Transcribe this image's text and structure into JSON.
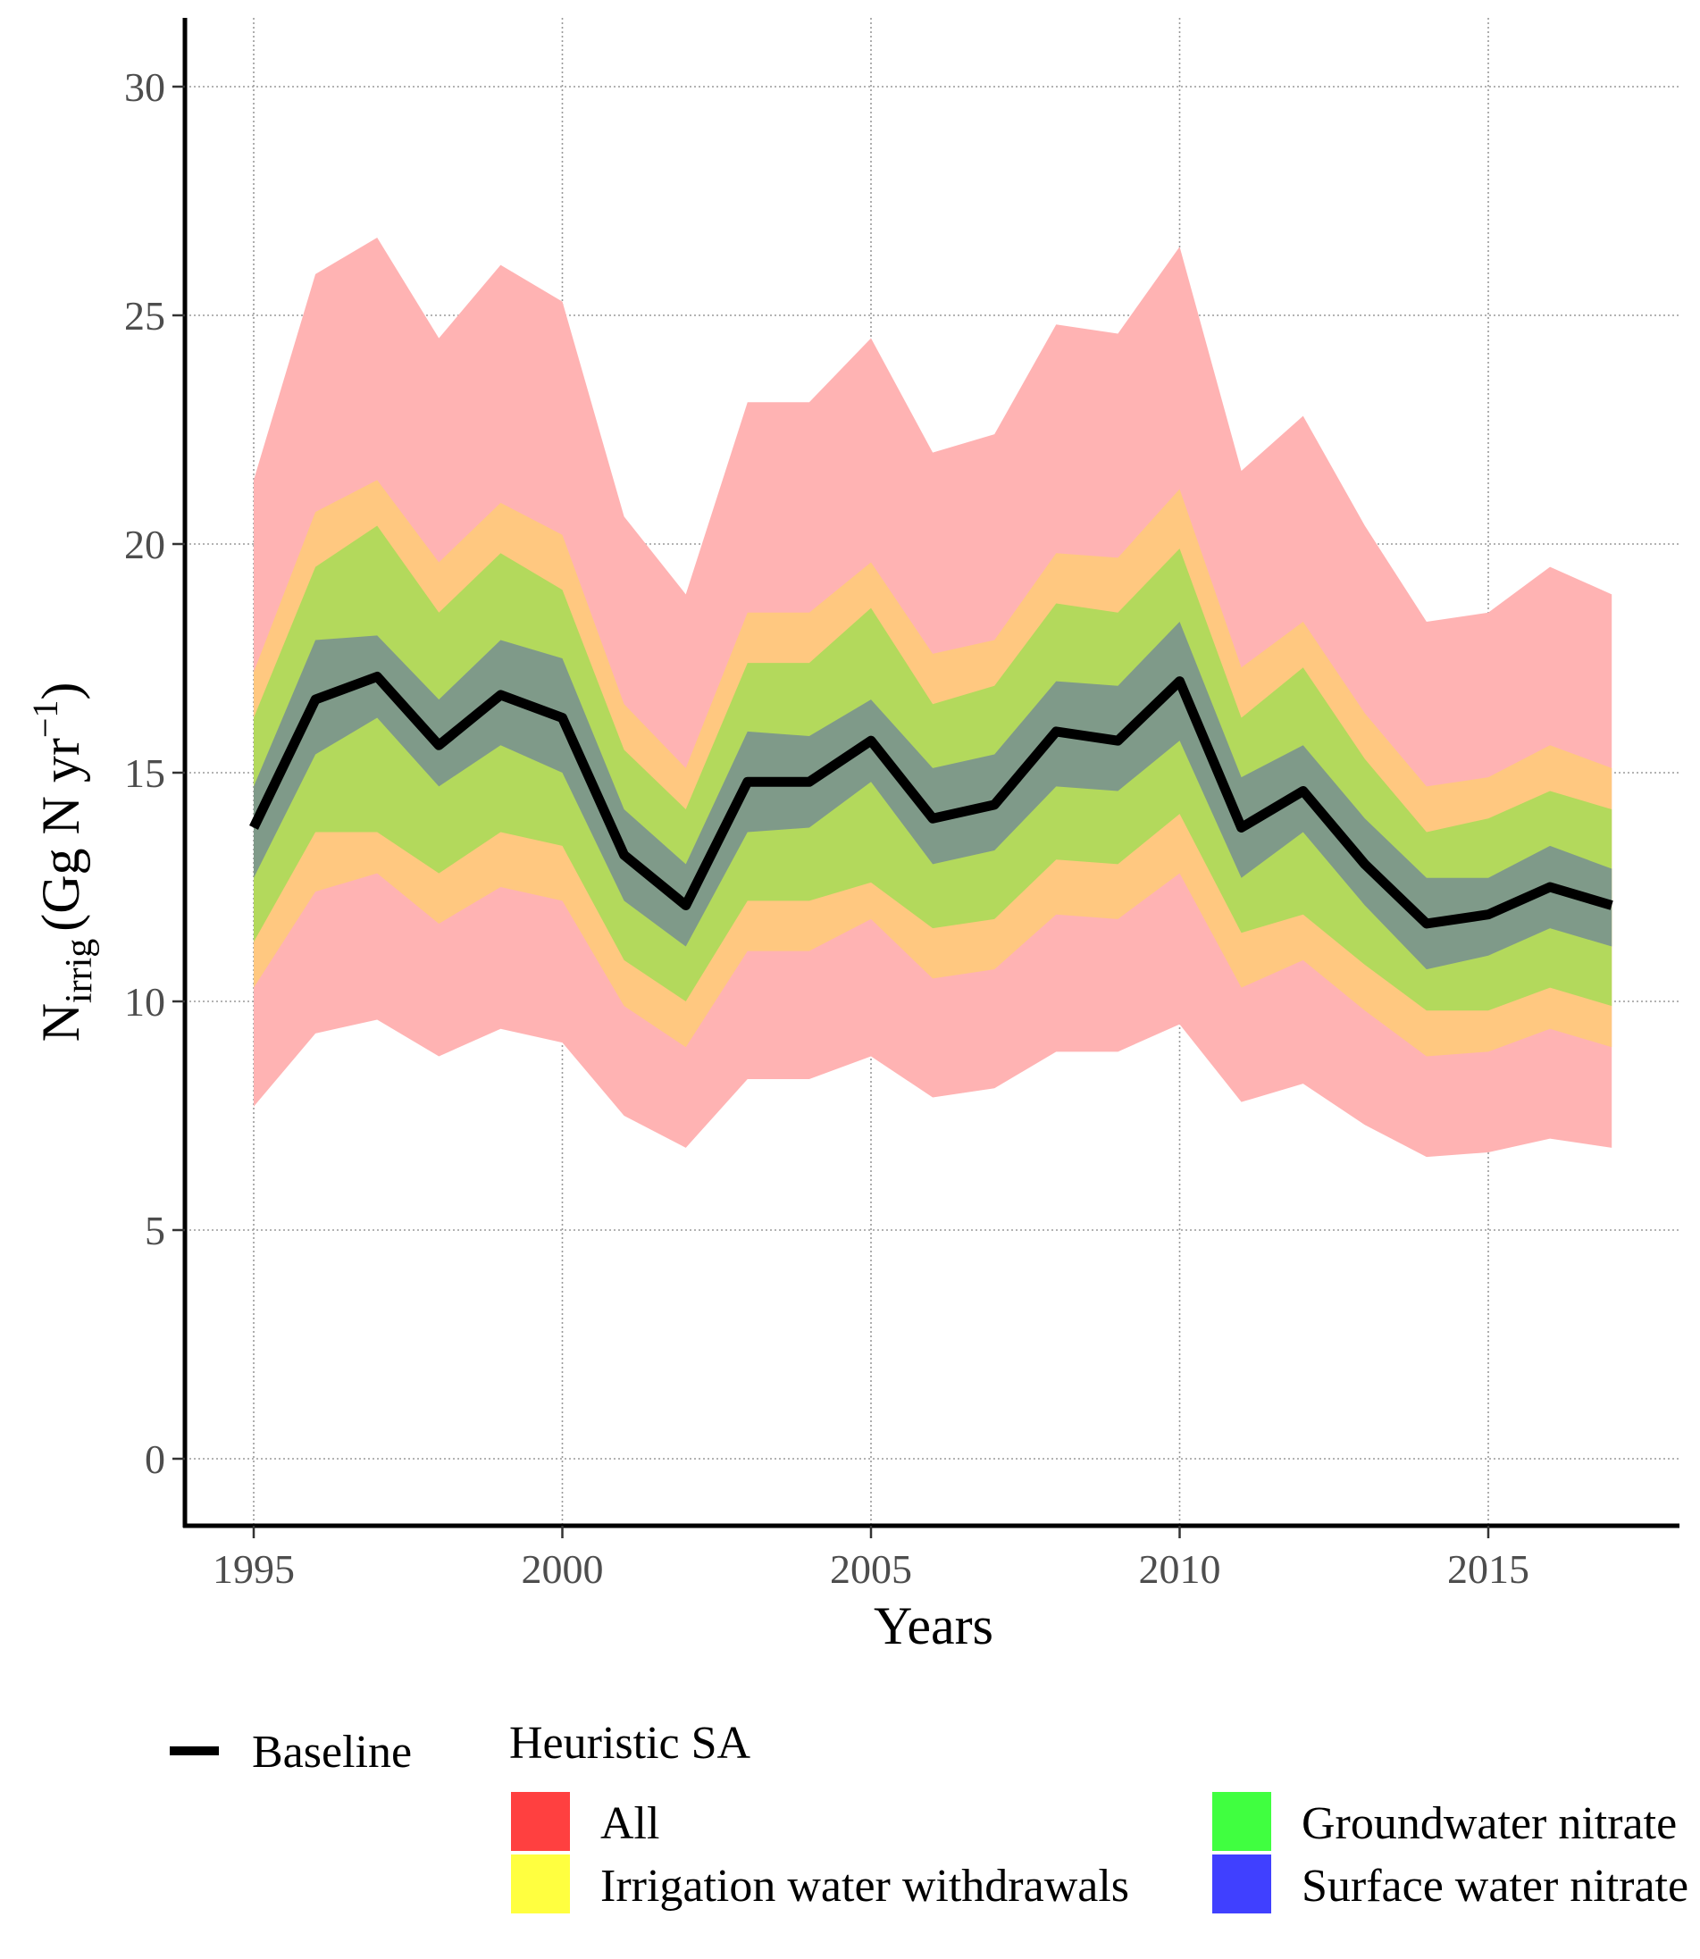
{
  "chart_data": {
    "type": "area",
    "xlabel": "Years",
    "ylabel": {
      "base": "N",
      "subscript": "irrig",
      "unit_open": "(Gg N yr",
      "superscript": "−1",
      "unit_close": ")"
    },
    "xlim": [
      1994,
      2018
    ],
    "ylim": [
      0,
      31
    ],
    "x_ticks": [
      1995,
      2000,
      2005,
      2010,
      2015
    ],
    "y_ticks": [
      0,
      5,
      10,
      15,
      20,
      25,
      30
    ],
    "grid": true,
    "grid_style": "dotted",
    "legend_position": "bottom",
    "x": [
      1995,
      1996,
      1997,
      1998,
      1999,
      2000,
      2001,
      2002,
      2003,
      2004,
      2005,
      2006,
      2007,
      2008,
      2009,
      2010,
      2011,
      2012,
      2013,
      2014,
      2015,
      2016,
      2017
    ],
    "line": {
      "name": "Baseline",
      "color": "#000000",
      "values": [
        13.8,
        16.6,
        17.1,
        15.6,
        16.7,
        16.2,
        13.2,
        12.1,
        14.8,
        14.8,
        15.7,
        14.0,
        14.3,
        15.9,
        15.7,
        17.0,
        13.8,
        14.6,
        13.0,
        11.7,
        11.9,
        12.5,
        12.1
      ]
    },
    "ribbons": [
      {
        "name": "All",
        "legend_color": "#ff4040",
        "fill": "#ffb3b3",
        "upper": [
          21.4,
          25.9,
          26.7,
          24.5,
          26.1,
          25.3,
          20.6,
          18.9,
          23.1,
          23.1,
          24.5,
          22.0,
          22.4,
          24.8,
          24.6,
          26.5,
          21.6,
          22.8,
          20.4,
          18.3,
          18.5,
          19.5,
          18.9
        ],
        "lower": [
          7.7,
          9.3,
          9.6,
          8.8,
          9.4,
          9.1,
          7.5,
          6.8,
          8.3,
          8.3,
          8.8,
          7.9,
          8.1,
          8.9,
          8.9,
          9.5,
          7.8,
          8.2,
          7.3,
          6.6,
          6.7,
          7.0,
          6.8
        ]
      },
      {
        "name": "Irrigation water withdrawals",
        "legend_color": "#ffff40",
        "fill": "#ffc880",
        "upper": [
          17.2,
          20.7,
          21.4,
          19.6,
          20.9,
          20.2,
          16.5,
          15.1,
          18.5,
          18.5,
          19.6,
          17.6,
          17.9,
          19.8,
          19.7,
          21.2,
          17.3,
          18.3,
          16.3,
          14.7,
          14.9,
          15.6,
          15.1
        ],
        "lower": [
          10.3,
          12.4,
          12.8,
          11.7,
          12.5,
          12.2,
          9.9,
          9.0,
          11.1,
          11.1,
          11.8,
          10.5,
          10.7,
          11.9,
          11.8,
          12.8,
          10.3,
          10.9,
          9.8,
          8.8,
          8.9,
          9.4,
          9.0
        ]
      },
      {
        "name": "Groundwater nitrate",
        "legend_color": "#40ff40",
        "fill": "#b3d95c",
        "upper": [
          16.2,
          19.5,
          20.4,
          18.5,
          19.8,
          19.0,
          15.5,
          14.2,
          17.4,
          17.4,
          18.6,
          16.5,
          16.9,
          18.7,
          18.5,
          19.9,
          16.2,
          17.3,
          15.3,
          13.7,
          14.0,
          14.6,
          14.2
        ],
        "lower": [
          11.3,
          13.7,
          13.7,
          12.8,
          13.7,
          13.4,
          10.9,
          10.0,
          12.2,
          12.2,
          12.6,
          11.6,
          11.8,
          13.1,
          13.0,
          14.1,
          11.5,
          11.9,
          10.8,
          9.8,
          9.8,
          10.3,
          9.9
        ]
      },
      {
        "name": "Surface water nitrate",
        "legend_color": "#4040ff",
        "fill": "#7f9a89",
        "upper": [
          14.7,
          17.9,
          18.0,
          16.6,
          17.9,
          17.5,
          14.2,
          13.0,
          15.9,
          15.8,
          16.6,
          15.1,
          15.4,
          17.0,
          16.9,
          18.3,
          14.9,
          15.6,
          14.0,
          12.7,
          12.7,
          13.4,
          12.9
        ],
        "lower": [
          12.7,
          15.4,
          16.2,
          14.7,
          15.6,
          15.0,
          12.2,
          11.2,
          13.7,
          13.8,
          14.8,
          13.0,
          13.3,
          14.7,
          14.6,
          15.7,
          12.7,
          13.7,
          12.1,
          10.7,
          11.0,
          11.6,
          11.2
        ]
      }
    ],
    "legend": {
      "line_label": "Baseline",
      "fill_title": "Heuristic SA",
      "fill_items": [
        "All",
        "Irrigation water withdrawals",
        "Groundwater nitrate",
        "Surface water nitrate"
      ]
    }
  }
}
